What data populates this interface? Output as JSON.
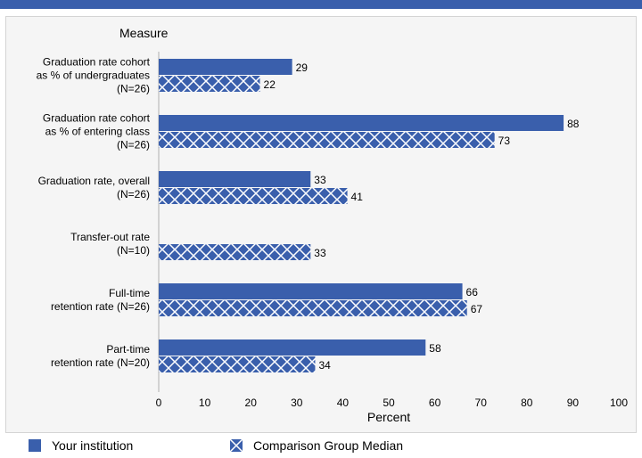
{
  "colors": {
    "accent": "#3a5fac",
    "panel": "#f5f5f5"
  },
  "legend": {
    "items": [
      {
        "label": "Your institution",
        "pattern": "solid"
      },
      {
        "label": "Comparison Group Median",
        "pattern": "crosshatch"
      }
    ]
  },
  "chart_data": {
    "type": "bar",
    "orientation": "horizontal",
    "title": "",
    "ylabel": "Measure",
    "xlabel": "Percent",
    "xlim": [
      0,
      100
    ],
    "xticks": [
      0,
      10,
      20,
      30,
      40,
      50,
      60,
      70,
      80,
      90,
      100
    ],
    "grid": false,
    "legend_position": "bottom",
    "categories": [
      [
        "Graduation rate cohort",
        "as % of undergraduates",
        "(N=26)"
      ],
      [
        "Graduation rate cohort",
        "as % of entering class",
        "(N=26)"
      ],
      [
        "Graduation rate, overall",
        "(N=26)"
      ],
      [
        "Transfer-out rate",
        "(N=10)"
      ],
      [
        "Full-time",
        "retention rate (N=26)"
      ],
      [
        "Part-time",
        "retention rate (N=20)"
      ]
    ],
    "series": [
      {
        "name": "Your institution",
        "values": [
          29,
          88,
          33,
          null,
          66,
          58
        ]
      },
      {
        "name": "Comparison Group Median",
        "values": [
          22,
          73,
          41,
          33,
          67,
          34
        ]
      }
    ]
  }
}
